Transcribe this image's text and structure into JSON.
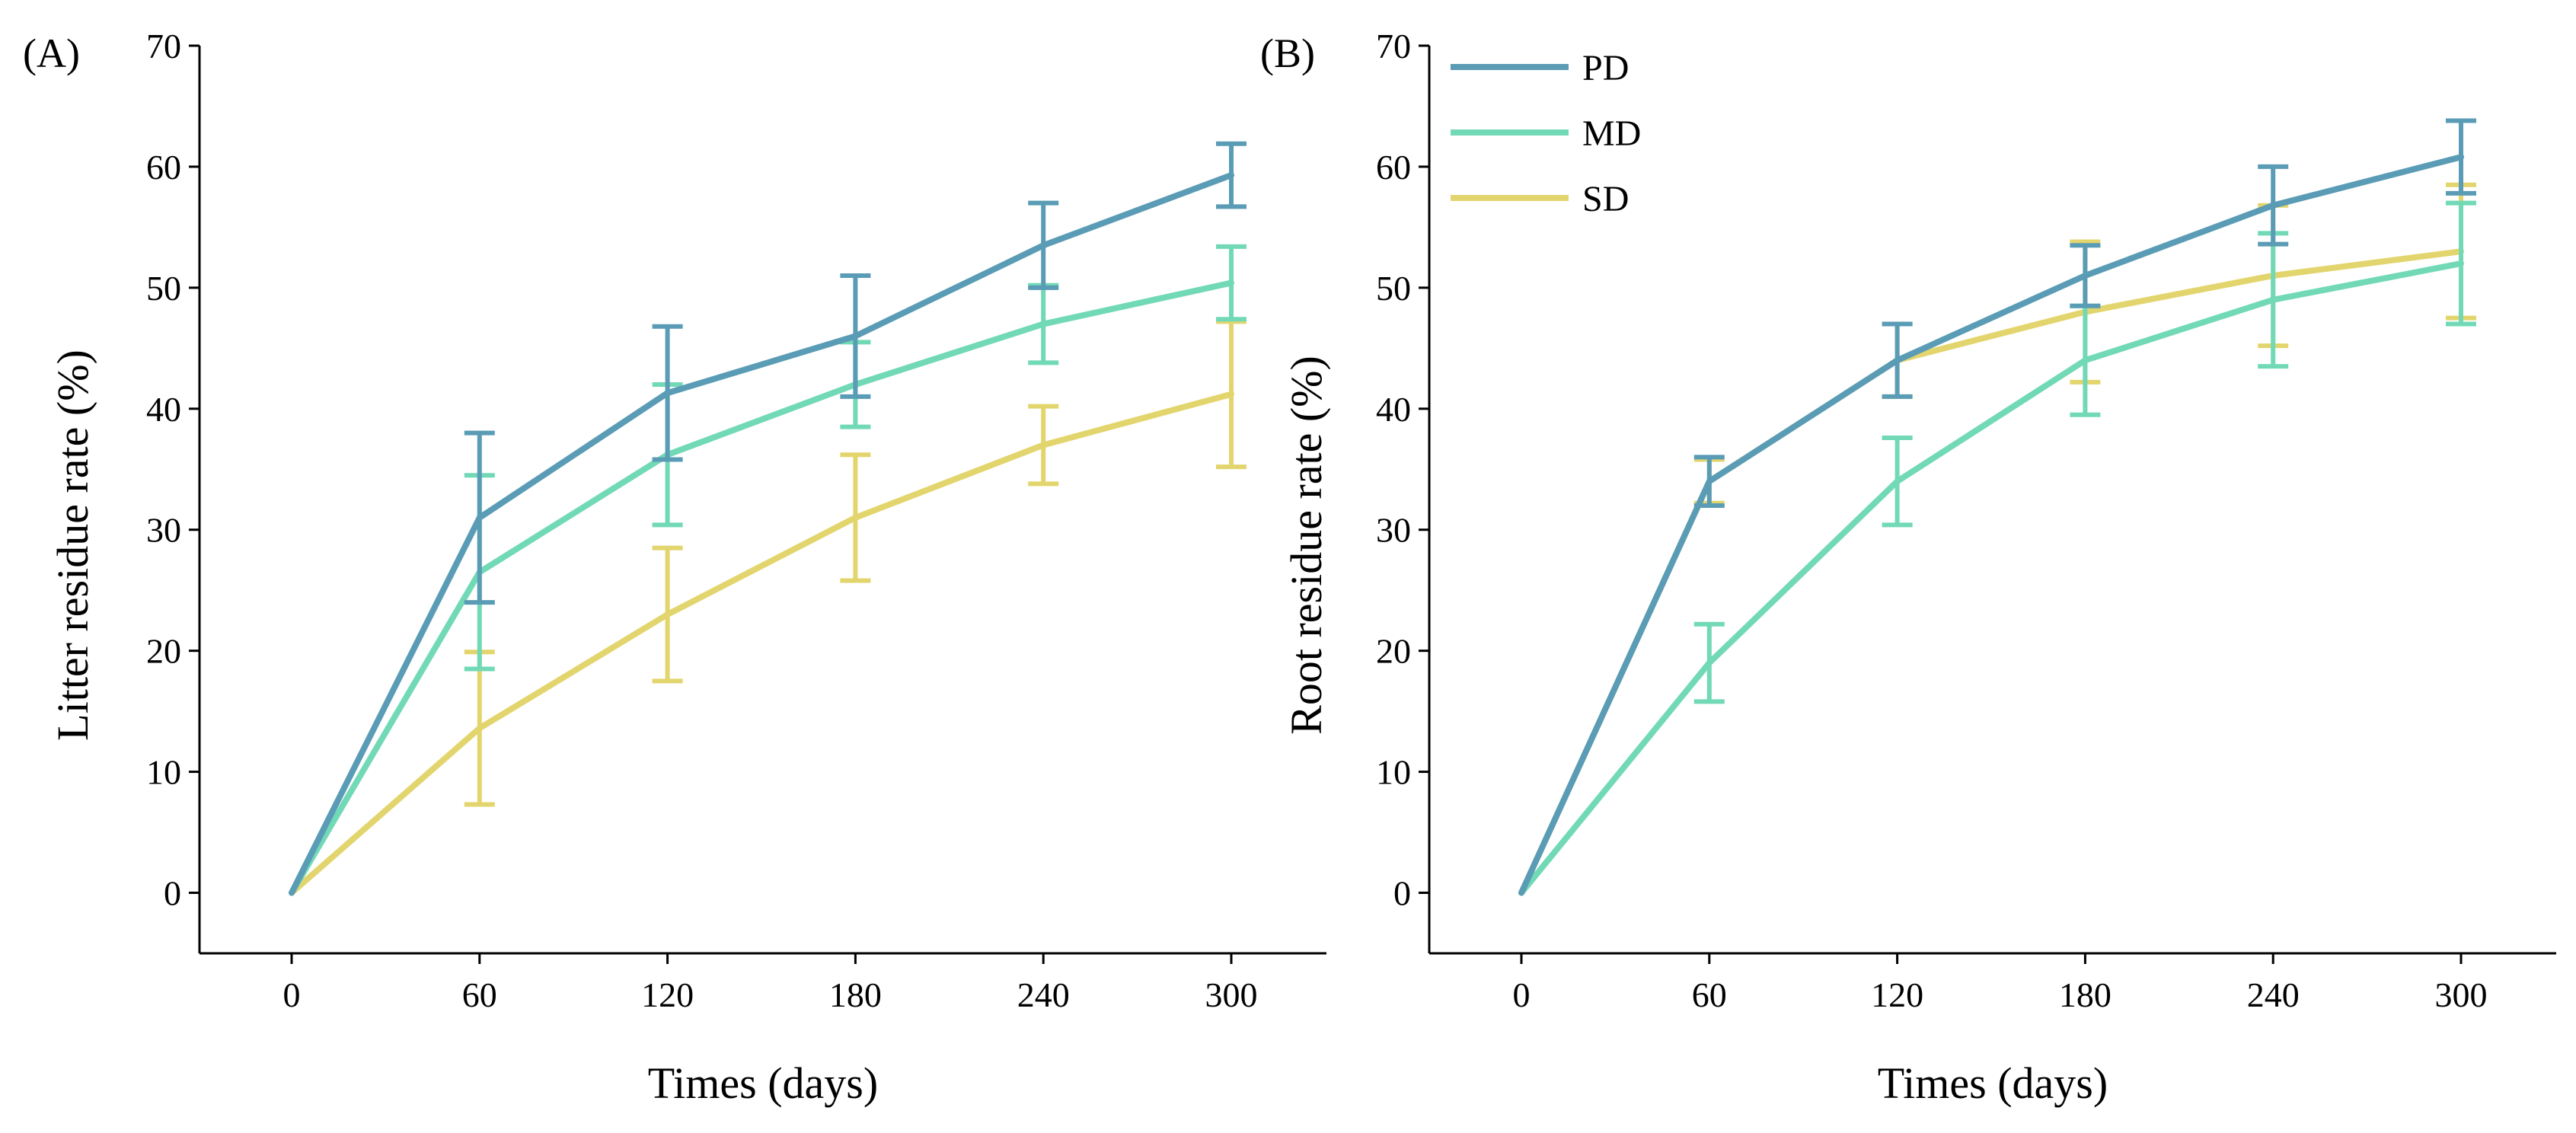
{
  "chart_data": [
    {
      "type": "line",
      "panel_label": "(A)",
      "xlabel": "Times (days)",
      "ylabel": "Litter residue rate (%)",
      "x": [
        0,
        60,
        120,
        180,
        240,
        300
      ],
      "x_ticks": [
        "0",
        "60",
        "120",
        "180",
        "240",
        "300"
      ],
      "ylim": [
        -5,
        70
      ],
      "y_ticks": [
        "0",
        "10",
        "20",
        "30",
        "40",
        "50",
        "60",
        "70"
      ],
      "series": [
        {
          "name": "PD",
          "color": "#5a9cb5",
          "values": [
            0,
            31,
            41.3,
            46,
            53.5,
            59.3
          ],
          "errors": [
            0,
            7,
            5.5,
            5,
            3.5,
            2.6
          ]
        },
        {
          "name": "MD",
          "color": "#72d9b6",
          "values": [
            0,
            26.5,
            36.2,
            42,
            47,
            50.4
          ],
          "errors": [
            0,
            8,
            5.8,
            3.5,
            3.2,
            3
          ]
        },
        {
          "name": "SD",
          "color": "#e3d56d",
          "values": [
            0,
            13.6,
            23,
            31,
            37,
            41.2
          ],
          "errors": [
            0,
            6.3,
            5.5,
            5.2,
            3.2,
            6
          ]
        }
      ],
      "legend": false
    },
    {
      "type": "line",
      "panel_label": "(B)",
      "xlabel": "Times (days)",
      "ylabel": "Root residue rate (%)",
      "x": [
        0,
        60,
        120,
        180,
        240,
        300
      ],
      "x_ticks": [
        "0",
        "60",
        "120",
        "180",
        "240",
        "300"
      ],
      "ylim": [
        -5,
        70
      ],
      "y_ticks": [
        "0",
        "10",
        "20",
        "30",
        "40",
        "50",
        "60",
        "70"
      ],
      "series": [
        {
          "name": "PD",
          "color": "#5a9cb5",
          "values": [
            0,
            34,
            44,
            51,
            56.8,
            60.8
          ],
          "errors": [
            0,
            2,
            3,
            2.5,
            3.2,
            3
          ]
        },
        {
          "name": "MD",
          "color": "#72d9b6",
          "values": [
            0,
            19,
            34,
            44,
            49,
            52
          ],
          "errors": [
            0,
            3.2,
            3.6,
            4.5,
            5.5,
            5
          ]
        },
        {
          "name": "SD",
          "color": "#e3d56d",
          "values": [
            0,
            34,
            44,
            48,
            51,
            53
          ],
          "errors": [
            0,
            1.8,
            3,
            5.8,
            5.8,
            5.5
          ]
        }
      ],
      "legend": true,
      "legend_position": "top-left"
    }
  ]
}
